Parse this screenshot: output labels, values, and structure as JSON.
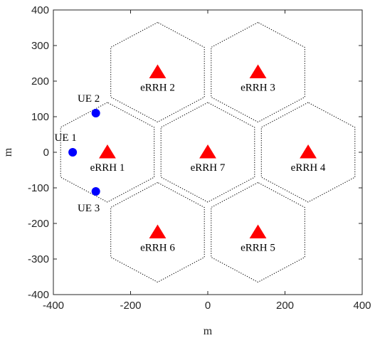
{
  "chart_data": {
    "type": "scatter",
    "title": "",
    "xlabel": "m",
    "ylabel": "m",
    "xlim": [
      -400,
      400
    ],
    "ylim": [
      -400,
      400
    ],
    "xticks": [
      -400,
      -200,
      0,
      200,
      400
    ],
    "yticks": [
      -400,
      -300,
      -200,
      -100,
      0,
      100,
      200,
      300,
      400
    ],
    "grid": false,
    "hexagon_circumradius": 140,
    "cells": [
      {
        "label": "eRRH 1",
        "x": -260,
        "y": 0
      },
      {
        "label": "eRRH 2",
        "x": -130,
        "y": 225
      },
      {
        "label": "eRRH 3",
        "x": 130,
        "y": 225
      },
      {
        "label": "eRRH 4",
        "x": 260,
        "y": 0
      },
      {
        "label": "eRRH 5",
        "x": 130,
        "y": -225
      },
      {
        "label": "eRRH 6",
        "x": -130,
        "y": -225
      },
      {
        "label": "eRRH 7",
        "x": 0,
        "y": 0
      }
    ],
    "users": [
      {
        "label": "UE 1",
        "x": -350,
        "y": 0
      },
      {
        "label": "UE 2",
        "x": -290,
        "y": 110
      },
      {
        "label": "UE 3",
        "x": -290,
        "y": -110
      }
    ],
    "colors": {
      "errh_marker": "#ff0000",
      "ue_marker": "#0000ff",
      "hexagon_line": "#000000",
      "axis": "#262626"
    }
  }
}
